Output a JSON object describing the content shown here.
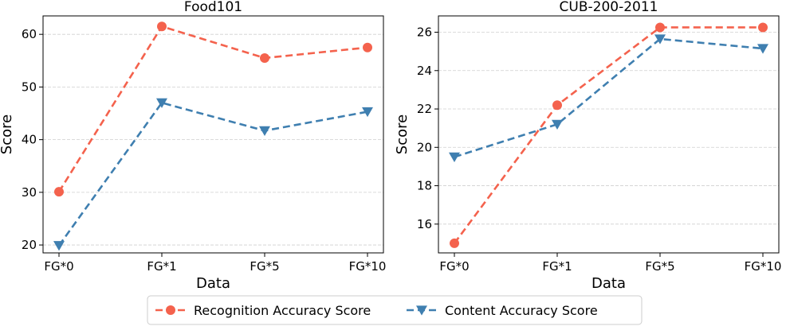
{
  "chart_data": [
    {
      "type": "line",
      "title": "Food101",
      "xlabel": "Data",
      "ylabel": "Score",
      "categories": [
        "FG*0",
        "FG*1",
        "FG*5",
        "FG*10"
      ],
      "ylim": [
        18.5,
        63.5
      ],
      "yticks": [
        20,
        30,
        40,
        50,
        60
      ],
      "grid": true,
      "series": [
        {
          "name": "Recognition Accuracy Score",
          "color": "#f4624d",
          "marker": "circle",
          "values": [
            30.1,
            61.5,
            55.5,
            57.5
          ]
        },
        {
          "name": "Content Accuracy Score",
          "color": "#3f7fb0",
          "marker": "triangle-down",
          "values": [
            19.9,
            47.0,
            41.7,
            45.3
          ]
        }
      ]
    },
    {
      "type": "line",
      "title": "CUB-200-2011",
      "xlabel": "Data",
      "ylabel": "Score",
      "categories": [
        "FG*0",
        "FG*1",
        "FG*5",
        "FG*10"
      ],
      "ylim": [
        14.5,
        26.85
      ],
      "yticks": [
        16,
        18,
        20,
        22,
        24,
        26
      ],
      "grid": true,
      "series": [
        {
          "name": "Recognition Accuracy Score",
          "color": "#f4624d",
          "marker": "circle",
          "values": [
            15.0,
            22.2,
            26.25,
            26.25
          ]
        },
        {
          "name": "Content Accuracy Score",
          "color": "#3f7fb0",
          "marker": "triangle-down",
          "values": [
            19.5,
            21.2,
            25.65,
            25.15
          ]
        }
      ]
    }
  ],
  "legend": {
    "location": "bottom-center",
    "items": [
      "Recognition Accuracy Score",
      "Content Accuracy Score"
    ]
  }
}
